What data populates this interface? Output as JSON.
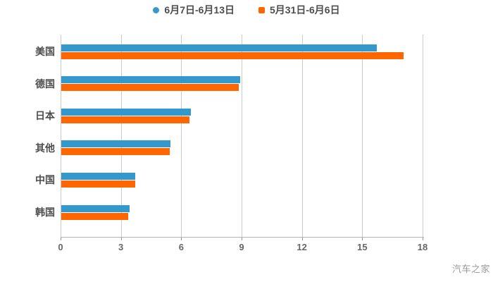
{
  "legend": {
    "items": [
      {
        "label": "6月7日-6月13日",
        "color": "#3399cc",
        "shape": "round"
      },
      {
        "label": "5月31日-6月6日",
        "color": "#ff6600",
        "shape": "square"
      }
    ]
  },
  "watermark": "汽车之家",
  "colors": {
    "series_blue": "#3399cc",
    "series_orange": "#ff6600",
    "gridline": "#cccccc",
    "axis": "#b3b3b3",
    "tick": "#999999",
    "tick_label": "#666666",
    "category_label": "#4d4d4d",
    "legend_label": "#4d4d4d",
    "background": "#ffffff",
    "watermark": "#9a9a9a"
  },
  "chart_data": {
    "type": "bar",
    "orientation": "horizontal",
    "title": "",
    "xlabel": "",
    "ylabel": "",
    "categories": [
      "美国",
      "德国",
      "日本",
      "其他",
      "中国",
      "韩国"
    ],
    "series": [
      {
        "name": "6月7日-6月13日",
        "color": "#3399cc",
        "values": [
          15.7,
          8.9,
          6.45,
          5.45,
          3.7,
          3.4
        ]
      },
      {
        "name": "5月31日-6月6日",
        "color": "#ff6600",
        "values": [
          17.05,
          8.85,
          6.4,
          5.4,
          3.7,
          3.35
        ]
      }
    ],
    "xlim": [
      0,
      18
    ],
    "xticks": [
      0,
      3,
      6,
      9,
      12,
      15,
      18
    ],
    "grid": true,
    "legend_position": "top"
  }
}
